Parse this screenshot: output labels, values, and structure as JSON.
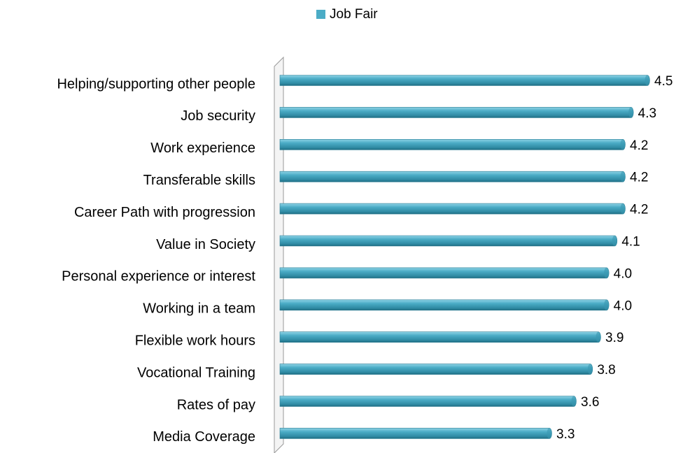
{
  "chart_data": {
    "type": "bar",
    "orientation": "horizontal",
    "categories": [
      "Helping/supporting other people",
      "Job security",
      "Work experience",
      "Transferable skills",
      "Career Path with progression",
      "Value in Society",
      "Personal experience or interest",
      "Working in a team",
      "Flexible work hours",
      "Vocational Training",
      "Rates of pay",
      "Media Coverage"
    ],
    "series": [
      {
        "name": "Job Fair",
        "color": "#4bacc6",
        "values": [
          4.5,
          4.3,
          4.2,
          4.2,
          4.2,
          4.1,
          4.0,
          4.0,
          3.9,
          3.8,
          3.6,
          3.3
        ],
        "value_labels": [
          "4.5",
          "4.3",
          "4.2",
          "4.2",
          "4.2",
          "4.1",
          "4.0",
          "4.0",
          "3.9",
          "3.8",
          "3.6",
          "3.3"
        ]
      }
    ],
    "xlim": [
      0,
      4.8
    ],
    "legend": "top"
  }
}
